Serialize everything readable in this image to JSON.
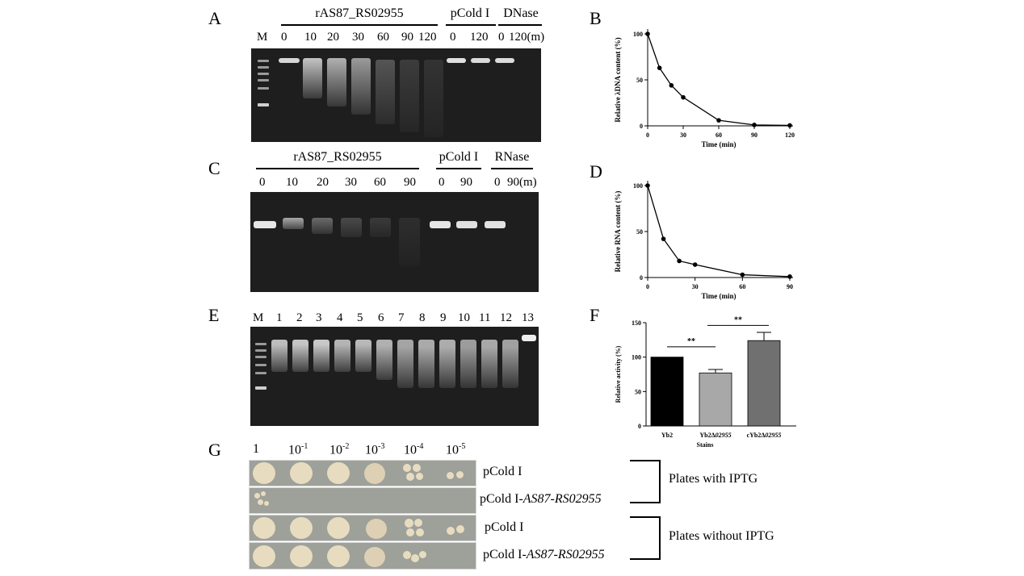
{
  "panels": {
    "A": "A",
    "B": "B",
    "C": "C",
    "D": "D",
    "E": "E",
    "F": "F",
    "G": "G"
  },
  "panel_A": {
    "groups": [
      "rAS87_RS02955",
      "pCold I",
      "DNase"
    ],
    "lanes": [
      "M",
      "0",
      "10",
      "20",
      "30",
      "60",
      "90",
      "120",
      "0",
      "120",
      "0",
      "120(m)"
    ]
  },
  "panel_C": {
    "groups": [
      "rAS87_RS02955",
      "pCold I",
      "RNase"
    ],
    "lanes": [
      "0",
      "10",
      "20",
      "30",
      "60",
      "90",
      "0",
      "90",
      "0",
      "90(m)"
    ]
  },
  "panel_E": {
    "lanes": [
      "M",
      "1",
      "2",
      "3",
      "4",
      "5",
      "6",
      "7",
      "8",
      "9",
      "10",
      "11",
      "12",
      "13"
    ]
  },
  "panel_G": {
    "dilutions": [
      "1",
      "10",
      "-1",
      "10",
      "-2",
      "10",
      "-3",
      "10",
      "-4",
      "10",
      "-5"
    ],
    "rows": [
      "pCold I",
      "pCold I-",
      "AS87-RS02955",
      "pCold I",
      "pCold I-",
      "AS87-RS02955"
    ],
    "brackets": [
      "Plates with IPTG",
      "Plates without IPTG"
    ]
  },
  "chart_data": [
    {
      "type": "line",
      "panel": "B",
      "xlabel": "Time (min)",
      "ylabel": "Relative λDNA content  (%)",
      "x": [
        0,
        10,
        20,
        30,
        60,
        90,
        120
      ],
      "values": [
        100,
        63,
        44,
        31,
        6,
        1,
        0.5
      ],
      "xticks": [
        0,
        30,
        60,
        90,
        120
      ],
      "yticks": [
        0,
        50,
        100
      ],
      "xlim": [
        0,
        120
      ],
      "ylim": [
        0,
        100
      ]
    },
    {
      "type": "line",
      "panel": "D",
      "xlabel": "Time (min)",
      "ylabel": "Relative RNA content  (%)",
      "x": [
        0,
        10,
        20,
        30,
        60,
        90
      ],
      "values": [
        100,
        42,
        18,
        14,
        3,
        1
      ],
      "xticks": [
        0,
        30,
        60,
        90
      ],
      "yticks": [
        0,
        50,
        100
      ],
      "xlim": [
        0,
        90
      ],
      "ylim": [
        0,
        100
      ]
    },
    {
      "type": "bar",
      "panel": "F",
      "categories": [
        "Yb2",
        "Yb2Δ02955",
        "cYb2Δ02955"
      ],
      "category_prefix": [
        "Yb2",
        "Yb2Δ",
        "cYb2Δ"
      ],
      "category_italic": [
        "",
        "02955",
        "02955"
      ],
      "values": [
        100,
        77,
        124
      ],
      "errors": [
        0,
        5,
        12
      ],
      "colors": [
        "#000000",
        "#a8a8a8",
        "#707070"
      ],
      "xlabel": "Stains",
      "ylabel": "Relative activity (%)",
      "yticks": [
        0,
        50,
        100,
        150
      ],
      "ylim": [
        0,
        150
      ],
      "significance": [
        "**",
        "**"
      ]
    }
  ]
}
